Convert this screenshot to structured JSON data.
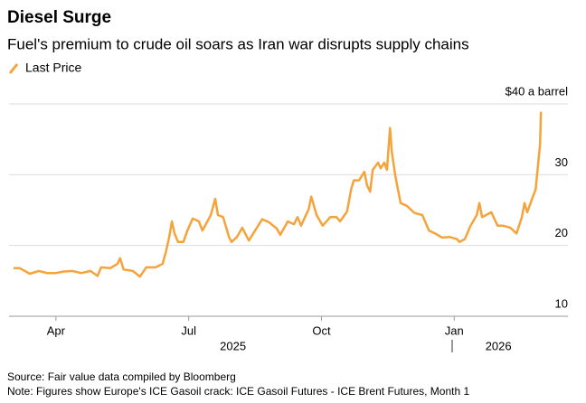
{
  "chart_data": {
    "type": "line",
    "title": "Diesel Surge",
    "subtitle": "Fuel's premium to crude oil soars as Iran war disrupts supply chains",
    "source": "Source: Fair value data compiled by Bloomberg",
    "note": "Note: Figures show Europe's ICE Gasoil crack: ICE Gasoil Futures - ICE Brent Futures, Month 1",
    "x": [
      3.04,
      3.18,
      3.41,
      3.61,
      3.8,
      4.0,
      4.16,
      4.37,
      4.57,
      4.78,
      4.94,
      5.02,
      5.23,
      5.39,
      5.45,
      5.53,
      5.74,
      5.9,
      6.04,
      6.25,
      6.41,
      6.49,
      6.56,
      6.62,
      6.68,
      6.76,
      6.88,
      6.97,
      7.09,
      7.23,
      7.31,
      7.5,
      7.6,
      7.66,
      7.78,
      7.91,
      7.97,
      8.09,
      8.21,
      8.36,
      8.5,
      8.66,
      8.81,
      8.99,
      9.07,
      9.24,
      9.38,
      9.46,
      9.54,
      9.71,
      9.77,
      9.89,
      10.03,
      10.2,
      10.34,
      10.42,
      10.58,
      10.67,
      10.73,
      10.85,
      10.97,
      11.03,
      11.1,
      11.16,
      11.28,
      11.34,
      11.42,
      11.48,
      11.55,
      11.59,
      11.67,
      11.79,
      11.93,
      12.1,
      12.28,
      12.43,
      12.57,
      12.73,
      12.9,
      13.06,
      13.12,
      13.24,
      13.37,
      13.51,
      13.57,
      13.63,
      13.84,
      13.98,
      14.1,
      14.27,
      14.41,
      14.53,
      14.59,
      14.65,
      14.78,
      14.84,
      14.9,
      14.94,
      14.96
    ],
    "series": [
      {
        "name": "Last Price",
        "color": "#f5a33b",
        "values": [
          16.8,
          16.8,
          16.0,
          16.4,
          16.1,
          16.1,
          16.3,
          16.4,
          16.1,
          16.4,
          15.7,
          16.9,
          16.8,
          17.4,
          18.2,
          16.6,
          16.4,
          15.6,
          16.9,
          16.9,
          17.4,
          19.2,
          21.2,
          23.4,
          21.7,
          20.5,
          20.5,
          22.1,
          23.8,
          23.4,
          22.1,
          24.3,
          26.6,
          24.3,
          24.0,
          21.2,
          20.5,
          21.2,
          22.5,
          20.7,
          22.1,
          23.7,
          23.3,
          22.4,
          21.5,
          23.4,
          23.0,
          24.0,
          22.8,
          25.1,
          26.9,
          24.3,
          22.8,
          24.0,
          24.0,
          23.4,
          24.8,
          27.9,
          29.2,
          29.2,
          30.4,
          28.5,
          27.6,
          30.7,
          31.7,
          30.9,
          31.7,
          30.7,
          36.6,
          33.2,
          29.8,
          26.0,
          25.6,
          24.6,
          24.3,
          22.1,
          21.7,
          21.1,
          21.2,
          20.9,
          20.5,
          20.9,
          22.8,
          24.3,
          26.0,
          24.0,
          24.7,
          22.8,
          22.8,
          22.5,
          21.7,
          24.0,
          26.0,
          24.7,
          26.9,
          27.9,
          31.7,
          34.3,
          38.9
        ]
      }
    ],
    "xlim": [
      2.94,
      15.57
    ],
    "xticks": [
      {
        "value": 4,
        "label": "Apr"
      },
      {
        "value": 7,
        "label": "Jul"
      },
      {
        "value": 10,
        "label": "Oct"
      },
      {
        "value": 13,
        "label": "Jan"
      }
    ],
    "x_group_labels": [
      {
        "value": 8,
        "label": "2025"
      },
      {
        "value": 14,
        "label": "2026"
      }
    ],
    "ylim": [
      10,
      40
    ],
    "yticks": [
      10,
      20,
      30,
      {
        "value": 40,
        "label": "$40 a barrel"
      }
    ],
    "grid": true
  }
}
